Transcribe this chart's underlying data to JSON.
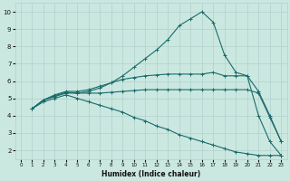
{
  "bg_color": "#cbe8e0",
  "grid_color": "#b0d0cc",
  "line_color": "#1a6b6b",
  "xlabel": "Humidex (Indice chaleur)",
  "xlim": [
    -0.5,
    23.5
  ],
  "ylim": [
    1.5,
    10.5
  ],
  "xticks": [
    0,
    1,
    2,
    3,
    4,
    5,
    6,
    7,
    8,
    9,
    10,
    11,
    12,
    13,
    14,
    15,
    16,
    17,
    18,
    19,
    20,
    21,
    22,
    23
  ],
  "yticks": [
    2,
    3,
    4,
    5,
    6,
    7,
    8,
    9,
    10
  ],
  "series": [
    {
      "x": [
        1,
        2,
        3,
        4,
        5,
        6,
        7,
        8,
        9,
        10,
        11,
        12,
        13,
        14,
        15,
        16,
        17,
        18,
        19,
        20,
        21,
        22,
        23
      ],
      "y": [
        4.4,
        4.9,
        5.1,
        5.3,
        5.3,
        5.4,
        5.6,
        5.9,
        6.3,
        6.8,
        7.3,
        7.8,
        8.4,
        9.2,
        9.6,
        10.0,
        9.4,
        7.5,
        6.5,
        6.3,
        4.0,
        2.5,
        1.7
      ]
    },
    {
      "x": [
        1,
        2,
        3,
        4,
        5,
        6,
        7,
        8,
        9,
        10,
        11,
        12,
        13,
        14,
        15,
        16,
        17,
        18,
        19,
        20,
        21,
        22,
        23
      ],
      "y": [
        4.4,
        4.9,
        5.2,
        5.4,
        5.4,
        5.5,
        5.7,
        5.9,
        6.1,
        6.2,
        6.3,
        6.35,
        6.4,
        6.4,
        6.4,
        6.4,
        6.5,
        6.3,
        6.3,
        6.3,
        5.4,
        4.0,
        2.5
      ]
    },
    {
      "x": [
        1,
        2,
        3,
        4,
        5,
        6,
        7,
        8,
        9,
        10,
        11,
        12,
        13,
        14,
        15,
        16,
        17,
        18,
        19,
        20,
        21,
        22,
        23
      ],
      "y": [
        4.4,
        4.9,
        5.15,
        5.35,
        5.3,
        5.3,
        5.3,
        5.35,
        5.4,
        5.45,
        5.5,
        5.5,
        5.5,
        5.5,
        5.5,
        5.5,
        5.5,
        5.5,
        5.5,
        5.5,
        5.3,
        3.9,
        2.5
      ]
    },
    {
      "x": [
        1,
        2,
        3,
        4,
        5,
        6,
        7,
        8,
        9,
        10,
        11,
        12,
        13,
        14,
        15,
        16,
        17,
        18,
        19,
        20,
        21,
        22,
        23
      ],
      "y": [
        4.4,
        4.8,
        5.0,
        5.2,
        5.0,
        4.8,
        4.6,
        4.4,
        4.2,
        3.9,
        3.7,
        3.4,
        3.2,
        2.9,
        2.7,
        2.5,
        2.3,
        2.1,
        1.9,
        1.8,
        1.7,
        1.7,
        1.7
      ]
    }
  ]
}
